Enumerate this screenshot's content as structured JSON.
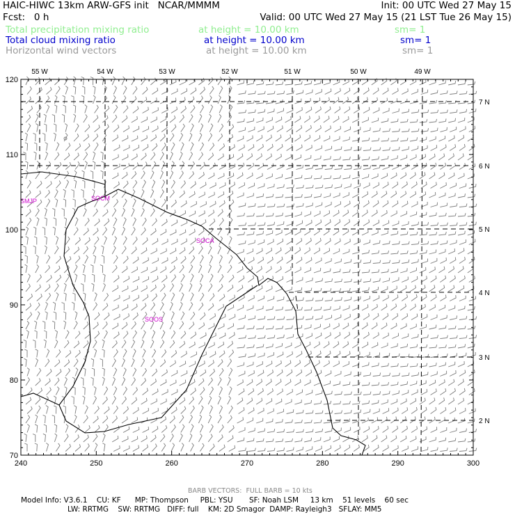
{
  "header": {
    "model_line": "HAIC-HIWC 13km ARW-GFS init   NCAR/MMMM",
    "init_line": "Init: 00 UTC Wed 27 May 15",
    "fcst_line": "Fcst:   0 h",
    "valid_line": "Valid: 00 UTC Wed 27 May 15 (21 LST Tue 26 May 15)",
    "fields": [
      {
        "name": "Total precipitation mixing ratio",
        "level": "at height = 10.00 km",
        "smooth": "sm= 1",
        "color": "#90ee90"
      },
      {
        "name": "Total cloud mixing ratio",
        "level": "at height = 10.00 km",
        "smooth": "sm= 1",
        "color": "#0000cc"
      },
      {
        "name": "Horizontal wind vectors",
        "level": "at height = 10.00 km",
        "smooth": "sm= 1",
        "color": "#9a9a9a"
      }
    ]
  },
  "map": {
    "x_ticks": [
      "240",
      "250",
      "260",
      "270",
      "280",
      "290",
      "300"
    ],
    "y_ticks": [
      "70",
      "80",
      "90",
      "100",
      "110",
      "120"
    ],
    "x_range": [
      240,
      300
    ],
    "y_range": [
      70,
      120
    ],
    "lon_labels": [
      "55 W",
      "54 W",
      "53 W",
      "52 W",
      "51 W",
      "50 W",
      "49 W"
    ],
    "lat_labels": [
      "7 N",
      "6 N",
      "5 N",
      "4 N",
      "3 N",
      "2 N"
    ],
    "stations": [
      "SMJP",
      "SOCM",
      "SOCA",
      "SOOS"
    ],
    "colors": {
      "coast": "#000000",
      "grid": "#000000",
      "barb": "#7a7a7a",
      "station": "#cc00cc"
    }
  },
  "footer": {
    "barb_note": "BARB VECTORS:  FULL BARB = 10 kts",
    "info_line1": "Model Info: V3.6.1    CU: KF      MP: Thompson     PBL: YSU       SF: Noah LSM     13 km    51 levels    60 sec",
    "info_line2": "LW: RRTMG    SW: RRTMG   DIFF: full    KM: 2D Smagor  DAMP: Rayleigh3   SFLAY: MM5"
  }
}
